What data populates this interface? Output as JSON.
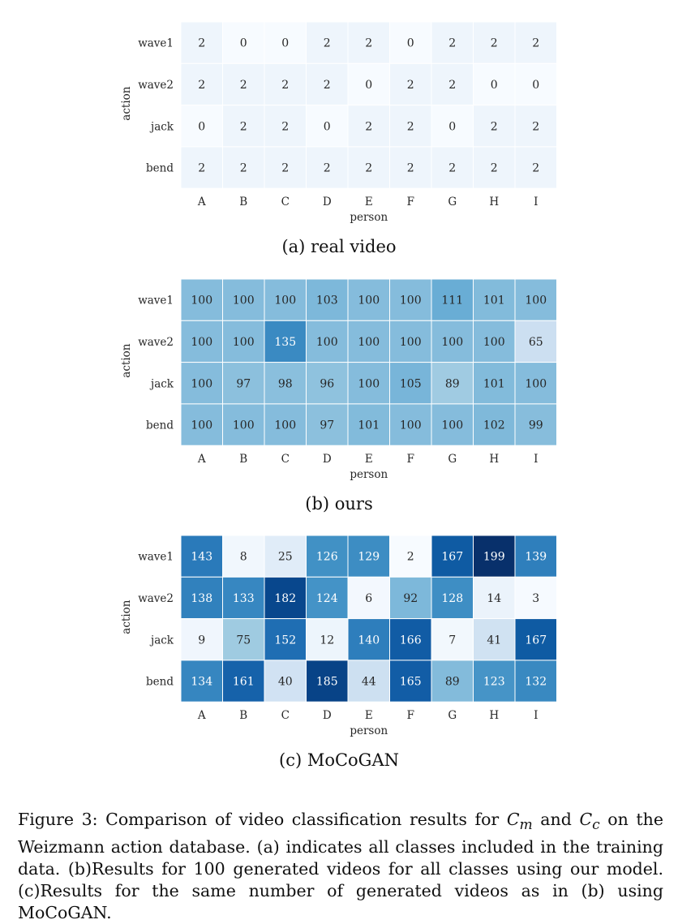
{
  "chart_data": [
    {
      "type": "heatmap",
      "caption": "(a) real video",
      "xlabel": "person",
      "ylabel": "action",
      "x": [
        "A",
        "B",
        "C",
        "D",
        "E",
        "F",
        "G",
        "H",
        "I"
      ],
      "y": [
        "wave1",
        "wave2",
        "jack",
        "bend"
      ],
      "values": [
        [
          2,
          0,
          0,
          2,
          2,
          0,
          2,
          2,
          2
        ],
        [
          2,
          2,
          2,
          2,
          0,
          2,
          2,
          0,
          0
        ],
        [
          0,
          2,
          2,
          0,
          2,
          2,
          0,
          2,
          2
        ],
        [
          2,
          2,
          2,
          2,
          2,
          2,
          2,
          2,
          2
        ]
      ],
      "colormap": "Blues",
      "vmin": 0,
      "vmax": 45
    },
    {
      "type": "heatmap",
      "caption": "(b) ours",
      "xlabel": "person",
      "ylabel": "action",
      "x": [
        "A",
        "B",
        "C",
        "D",
        "E",
        "F",
        "G",
        "H",
        "I"
      ],
      "y": [
        "wave1",
        "wave2",
        "jack",
        "bend"
      ],
      "values": [
        [
          100,
          100,
          100,
          103,
          100,
          100,
          111,
          101,
          100
        ],
        [
          100,
          100,
          135,
          100,
          100,
          100,
          100,
          100,
          65
        ],
        [
          100,
          97,
          98,
          96,
          100,
          105,
          89,
          101,
          100
        ],
        [
          100,
          100,
          100,
          97,
          101,
          100,
          100,
          102,
          99
        ]
      ],
      "colormap": "Blues",
      "vmin": 30,
      "vmax": 190
    },
    {
      "type": "heatmap",
      "caption": "(c) MoCoGAN",
      "xlabel": "person",
      "ylabel": "action",
      "x": [
        "A",
        "B",
        "C",
        "D",
        "E",
        "F",
        "G",
        "H",
        "I"
      ],
      "y": [
        "wave1",
        "wave2",
        "jack",
        "bend"
      ],
      "values": [
        [
          143,
          8,
          25,
          126,
          129,
          2,
          167,
          199,
          139
        ],
        [
          138,
          133,
          182,
          124,
          6,
          92,
          128,
          14,
          3
        ],
        [
          9,
          75,
          152,
          12,
          140,
          166,
          7,
          41,
          167
        ],
        [
          134,
          161,
          40,
          185,
          44,
          165,
          89,
          123,
          132
        ]
      ],
      "colormap": "Blues",
      "vmin": 2,
      "vmax": 199
    }
  ],
  "figure_caption": {
    "prefix": "Figure 3: Comparison of video classification results for ",
    "cm_base": "C",
    "cm_sub": "m",
    "and_text": " and ",
    "cc_base": "C",
    "cc_sub": "c",
    "suffix": " on the Weizmann action database. (a) indicates all classes included in the training data. (b)Results for 100 generated videos for all classes using our model. (c)Results for the same number of generated videos as in (b) using MoCoGAN."
  },
  "colors": {
    "blues_low": "#f7fbff",
    "blues_high": "#08306b",
    "text_dark": "#262626",
    "text_light": "#ffffff"
  }
}
